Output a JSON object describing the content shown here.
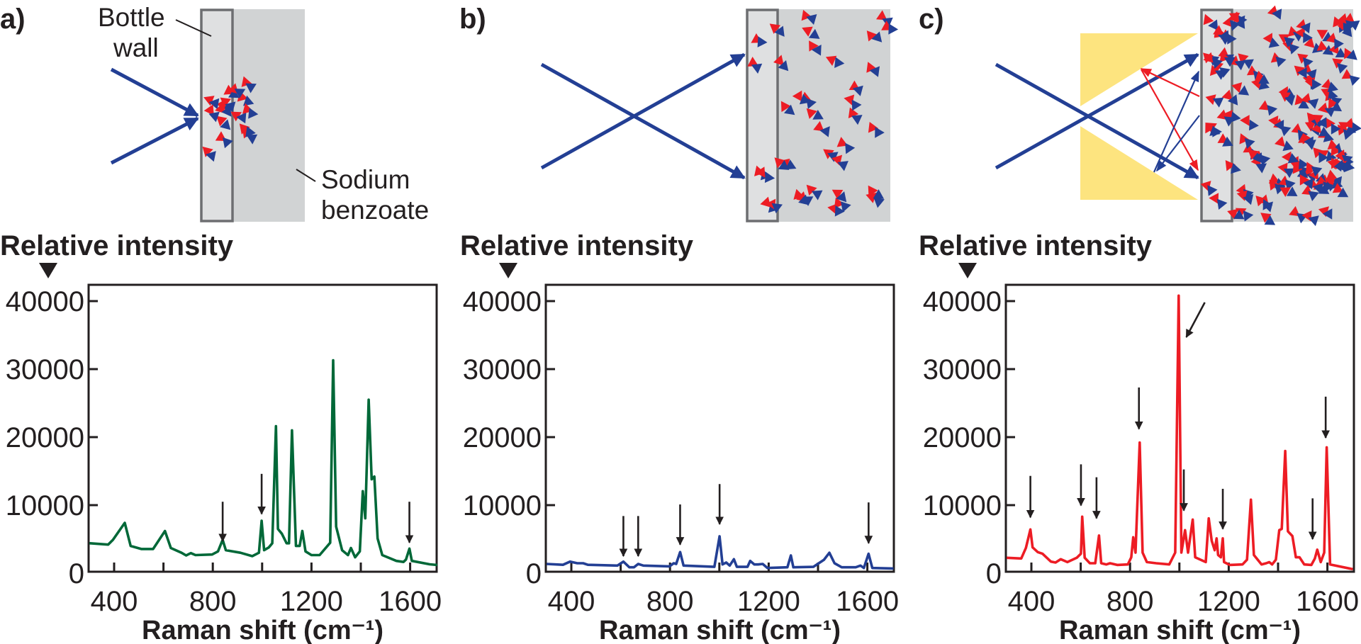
{
  "colors": {
    "green": "#006838",
    "blue": "#233f94",
    "red": "#ed1c24",
    "yellow": "#fde47f",
    "solution": "#d1d3d4",
    "wall": "#dfe0e1",
    "wall_border": "#6d6e71",
    "ink": "#231f20"
  },
  "panels": [
    {
      "label": "a)",
      "ylabel": "Relative intensity",
      "wall_label": "Bottle wall",
      "solution_label": "Sodium benzoate"
    },
    {
      "label": "b)",
      "ylabel": "Relative intensity"
    },
    {
      "label": "c)",
      "ylabel": "Relative intensity"
    }
  ],
  "chart_data": [
    {
      "type": "line",
      "xlabel": "Raman shift (cm⁻¹)",
      "ylabel": "Relative intensity",
      "xlim": [
        300,
        1710
      ],
      "ylim": [
        -200,
        42200
      ],
      "xticks": [
        400,
        800,
        1200,
        1600
      ],
      "xminor_step": 200,
      "yticks": [
        0,
        10000,
        20000,
        30000,
        40000
      ],
      "grid": false,
      "color": "#006838",
      "series": [
        {
          "points": [
            [
              300,
              4400
            ],
            [
              376,
              4200
            ],
            [
              395,
              4900
            ],
            [
              443,
              7400
            ],
            [
              467,
              4000
            ],
            [
              510,
              3550
            ],
            [
              558,
              3550
            ],
            [
              606,
              6200
            ],
            [
              630,
              3700
            ],
            [
              673,
              3000
            ],
            [
              692,
              2600
            ],
            [
              711,
              2950
            ],
            [
              730,
              2660
            ],
            [
              797,
              2740
            ],
            [
              821,
              3200
            ],
            [
              840,
              4900
            ],
            [
              853,
              3370
            ],
            [
              912,
              3000
            ],
            [
              960,
              2500
            ],
            [
              987,
              3000
            ],
            [
              998,
              7700
            ],
            [
              1008,
              3370
            ],
            [
              1027,
              3780
            ],
            [
              1041,
              4400
            ],
            [
              1056,
              21600
            ],
            [
              1064,
              6500
            ],
            [
              1080,
              5800
            ],
            [
              1099,
              4400
            ],
            [
              1109,
              4400
            ],
            [
              1121,
              21000
            ],
            [
              1137,
              4000
            ],
            [
              1152,
              4000
            ],
            [
              1163,
              6200
            ],
            [
              1176,
              3200
            ],
            [
              1200,
              2660
            ],
            [
              1233,
              2660
            ],
            [
              1276,
              4470
            ],
            [
              1288,
              31300
            ],
            [
              1300,
              6840
            ],
            [
              1324,
              3370
            ],
            [
              1348,
              2660
            ],
            [
              1360,
              3700
            ],
            [
              1377,
              2330
            ],
            [
              1396,
              3200
            ],
            [
              1408,
              12050
            ],
            [
              1418,
              8060
            ],
            [
              1432,
              25500
            ],
            [
              1444,
              13800
            ],
            [
              1455,
              14200
            ],
            [
              1468,
              5100
            ],
            [
              1487,
              2660
            ],
            [
              1544,
              1800
            ],
            [
              1573,
              1650
            ],
            [
              1583,
              2000
            ],
            [
              1597,
              3600
            ],
            [
              1607,
              1800
            ],
            [
              1679,
              1300
            ],
            [
              1710,
              1200
            ]
          ]
        }
      ],
      "arrows": [
        [
          840,
          10500,
          840,
          4700
        ],
        [
          998,
          14600,
          998,
          8700
        ],
        [
          1597,
          10500,
          1597,
          4500
        ]
      ]
    },
    {
      "type": "line",
      "xlabel": "Raman shift (cm⁻¹)",
      "ylabel": "Relative intensity",
      "xlim": [
        300,
        1710
      ],
      "ylim": [
        -200,
        42200
      ],
      "xticks": [
        400,
        800,
        1200,
        1600
      ],
      "xminor_step": 200,
      "yticks": [
        0,
        10000,
        20000,
        30000,
        40000
      ],
      "grid": false,
      "color": "#233f94",
      "series": [
        {
          "points": [
            [
              300,
              1350
            ],
            [
              366,
              1230
            ],
            [
              395,
              1700
            ],
            [
              424,
              1460
            ],
            [
              448,
              1460
            ],
            [
              467,
              1230
            ],
            [
              587,
              1110
            ],
            [
              611,
              1700
            ],
            [
              635,
              860
            ],
            [
              654,
              860
            ],
            [
              671,
              1350
            ],
            [
              692,
              1110
            ],
            [
              798,
              1000
            ],
            [
              815,
              1460
            ],
            [
              825,
              1350
            ],
            [
              841,
              3100
            ],
            [
              855,
              1110
            ],
            [
              980,
              930
            ],
            [
              1001,
              5420
            ],
            [
              1013,
              1280
            ],
            [
              1028,
              1560
            ],
            [
              1042,
              1110
            ],
            [
              1059,
              2050
            ],
            [
              1071,
              930
            ],
            [
              1114,
              930
            ],
            [
              1125,
              1800
            ],
            [
              1142,
              1280
            ],
            [
              1157,
              1280
            ],
            [
              1176,
              1350
            ],
            [
              1195,
              760
            ],
            [
              1276,
              860
            ],
            [
              1290,
              2600
            ],
            [
              1300,
              860
            ],
            [
              1381,
              930
            ],
            [
              1424,
              1970
            ],
            [
              1446,
              3000
            ],
            [
              1467,
              1460
            ],
            [
              1496,
              860
            ],
            [
              1553,
              860
            ],
            [
              1572,
              1110
            ],
            [
              1586,
              760
            ],
            [
              1605,
              2850
            ],
            [
              1620,
              760
            ],
            [
              1706,
              690
            ]
          ]
        }
      ],
      "arrows": [
        [
          611,
          8400,
          611,
          2500
        ],
        [
          671,
          8400,
          671,
          2500
        ],
        [
          841,
          10100,
          841,
          4200
        ],
        [
          1001,
          13100,
          1001,
          7200
        ],
        [
          1605,
          10400,
          1605,
          4400
        ]
      ]
    },
    {
      "type": "line",
      "xlabel": "Raman shift (cm⁻¹)",
      "ylabel": "Relative intensity",
      "xlim": [
        300,
        1710
      ],
      "ylim": [
        -200,
        42200
      ],
      "xticks": [
        400,
        800,
        1200,
        1600
      ],
      "xminor_step": 200,
      "yticks": [
        0,
        10000,
        20000,
        30000,
        40000
      ],
      "grid": false,
      "color": "#ed1c24",
      "series": [
        {
          "points": [
            [
              300,
              2260
            ],
            [
              359,
              2160
            ],
            [
              378,
              3720
            ],
            [
              396,
              6430
            ],
            [
              405,
              3790
            ],
            [
              426,
              3090
            ],
            [
              445,
              2850
            ],
            [
              479,
              1700
            ],
            [
              498,
              1560
            ],
            [
              519,
              2050
            ],
            [
              546,
              1630
            ],
            [
              584,
              2260
            ],
            [
              601,
              2850
            ],
            [
              606,
              8300
            ],
            [
              616,
              2260
            ],
            [
              637,
              1460
            ],
            [
              659,
              1460
            ],
            [
              674,
              5530
            ],
            [
              683,
              1460
            ],
            [
              704,
              1280
            ],
            [
              719,
              1460
            ],
            [
              748,
              1210
            ],
            [
              791,
              1280
            ],
            [
              805,
              2330
            ],
            [
              813,
              5280
            ],
            [
              822,
              3020
            ],
            [
              839,
              19200
            ],
            [
              851,
              3020
            ],
            [
              868,
              1630
            ],
            [
              906,
              1460
            ],
            [
              959,
              1280
            ],
            [
              983,
              3020
            ],
            [
              997,
              40800
            ],
            [
              1008,
              3020
            ],
            [
              1023,
              6320
            ],
            [
              1035,
              3020
            ],
            [
              1054,
              7880
            ],
            [
              1064,
              2330
            ],
            [
              1107,
              1630
            ],
            [
              1119,
              8050
            ],
            [
              1131,
              4760
            ],
            [
              1143,
              3370
            ],
            [
              1151,
              5110
            ],
            [
              1157,
              2670
            ],
            [
              1168,
              2330
            ],
            [
              1176,
              5110
            ],
            [
              1181,
              1630
            ],
            [
              1204,
              1210
            ],
            [
              1256,
              1280
            ],
            [
              1274,
              1980
            ],
            [
              1290,
              10800
            ],
            [
              1302,
              2670
            ],
            [
              1333,
              1280
            ],
            [
              1352,
              1460
            ],
            [
              1364,
              1630
            ],
            [
              1376,
              1280
            ],
            [
              1391,
              1980
            ],
            [
              1405,
              6320
            ],
            [
              1415,
              6500
            ],
            [
              1429,
              17960
            ],
            [
              1440,
              6150
            ],
            [
              1458,
              5460
            ],
            [
              1472,
              2330
            ],
            [
              1487,
              2330
            ],
            [
              1506,
              1280
            ],
            [
              1535,
              1210
            ],
            [
              1549,
              2160
            ],
            [
              1559,
              3450
            ],
            [
              1573,
              1630
            ],
            [
              1587,
              3020
            ],
            [
              1597,
              18500
            ],
            [
              1611,
              1280
            ],
            [
              1703,
              580
            ]
          ]
        }
      ],
      "arrows": [
        [
          396,
          14300,
          396,
          8200
        ],
        [
          601,
          16000,
          601,
          9950
        ],
        [
          664,
          14100,
          664,
          8060
        ],
        [
          836,
          27300,
          836,
          21200
        ],
        [
          1103,
          39800,
          1028,
          34700
        ],
        [
          1018,
          15250,
          1018,
          9200
        ],
        [
          1176,
          12400,
          1176,
          6500
        ],
        [
          1540,
          11000,
          1540,
          5000
        ],
        [
          1593,
          25950,
          1593,
          19900
        ]
      ]
    }
  ]
}
